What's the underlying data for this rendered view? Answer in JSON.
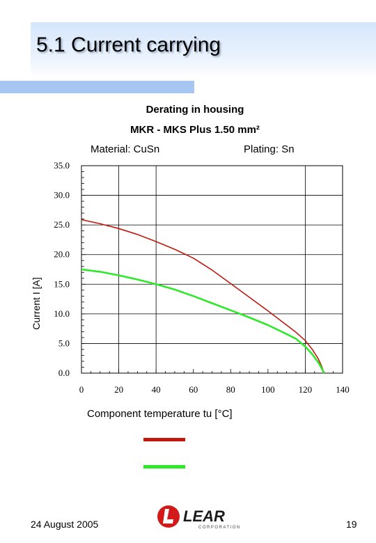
{
  "slide": {
    "title": "5.1 Current carrying",
    "footer_date": "24 August 2005",
    "page_number": "19",
    "logo_text": "LEAR",
    "logo_subtext": "CORPORATION"
  },
  "chart_data": {
    "type": "line",
    "title": "Derating in housing",
    "subtitle": "MKR - MKS  Plus 1.50 mm²",
    "annotations": [
      "Material: CuSn",
      "Plating: Sn"
    ],
    "xlabel": "Component temperature tu [°C]",
    "ylabel": "Current I [A]",
    "xlim": [
      0,
      140
    ],
    "ylim": [
      0,
      35
    ],
    "xticks": [
      "0",
      "20",
      "40",
      "60",
      "80",
      "100",
      "120",
      "140"
    ],
    "yticks": [
      "0.0",
      "5.0",
      "10.0",
      "15.0",
      "20.0",
      "25.0",
      "30.0",
      "35.0"
    ],
    "vertical_gridlines": [
      20,
      40,
      120
    ],
    "horizontal_gridlines": [
      5,
      10,
      15,
      20,
      25,
      30
    ],
    "legend_placement": "below chart",
    "series": [
      {
        "color": "#c0180f",
        "x": [
          0,
          10,
          20,
          30,
          40,
          50,
          60,
          70,
          80,
          90,
          100,
          110,
          115,
          120,
          124,
          127,
          129,
          130
        ],
        "y": [
          25.9,
          25.2,
          24.4,
          23.4,
          22.2,
          20.9,
          19.4,
          17.4,
          15.1,
          12.8,
          10.5,
          8.1,
          6.9,
          5.5,
          3.9,
          2.4,
          1.0,
          0.0
        ]
      },
      {
        "color": "#2ee82a",
        "x": [
          0,
          10,
          20,
          30,
          40,
          50,
          60,
          70,
          80,
          90,
          100,
          110,
          115,
          120,
          124,
          127,
          129,
          130
        ],
        "y": [
          17.5,
          17.1,
          16.5,
          15.8,
          15.0,
          14.1,
          13.0,
          11.8,
          10.6,
          9.4,
          8.1,
          6.6,
          5.8,
          4.5,
          3.1,
          1.8,
          0.7,
          0.0
        ]
      }
    ]
  },
  "colors": {
    "header_band": "#d5e6fb",
    "accent_bar": "#a8c6f2",
    "logo_red": "#d21a1a"
  }
}
